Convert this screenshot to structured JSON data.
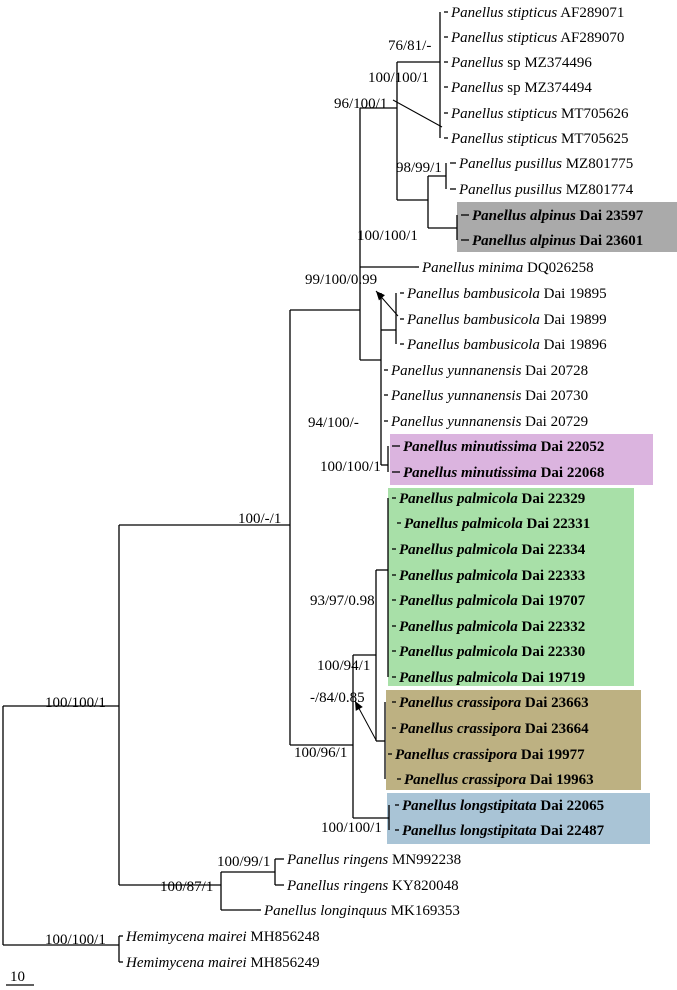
{
  "tips": [
    {
      "genus": "Panellus",
      "epithet": "stipticus",
      "voucher": "AF289071",
      "bold": false
    },
    {
      "genus": "Panellus",
      "epithet": "stipticus",
      "voucher": "AF289070",
      "bold": false
    },
    {
      "genus": "Panellus",
      "epithet": "sp",
      "voucher": "MZ374496",
      "bold": false,
      "roman_epithet": true
    },
    {
      "genus": "Panellus",
      "epithet": "sp",
      "voucher": "MZ374494",
      "bold": false,
      "roman_epithet": true
    },
    {
      "genus": "Panellus",
      "epithet": "stipticus",
      "voucher": "MT705626",
      "bold": false
    },
    {
      "genus": "Panellus",
      "epithet": "stipticus",
      "voucher": "MT705625",
      "bold": false
    },
    {
      "genus": "Panellus",
      "epithet": "pusillus",
      "voucher": "MZ801775",
      "bold": false
    },
    {
      "genus": "Panellus",
      "epithet": "pusillus",
      "voucher": "MZ801774",
      "bold": false
    },
    {
      "genus": "Panellus",
      "epithet": "alpinus",
      "voucher": "Dai 23597",
      "bold": true
    },
    {
      "genus": "Panellus",
      "epithet": "alpinus",
      "voucher": "Dai 23601",
      "bold": true
    },
    {
      "genus": "Panellus",
      "epithet": "minima",
      "voucher": "DQ026258",
      "bold": false
    },
    {
      "genus": "Panellus",
      "epithet": "bambusicola",
      "voucher": "Dai 19895",
      "bold": false
    },
    {
      "genus": "Panellus",
      "epithet": "bambusicola",
      "voucher": "Dai 19899",
      "bold": false
    },
    {
      "genus": "Panellus",
      "epithet": "bambusicola",
      "voucher": "Dai 19896",
      "bold": false
    },
    {
      "genus": "Panellus",
      "epithet": "yunnanensis",
      "voucher": "Dai 20728",
      "bold": false
    },
    {
      "genus": "Panellus",
      "epithet": "yunnanensis",
      "voucher": "Dai 20730",
      "bold": false
    },
    {
      "genus": "Panellus",
      "epithet": "yunnanensis",
      "voucher": "Dai 20729",
      "bold": false
    },
    {
      "genus": "Panellus",
      "epithet": "minutissima",
      "voucher": "Dai 22052",
      "bold": true
    },
    {
      "genus": "Panellus",
      "epithet": "minutissima",
      "voucher": "Dai 22068",
      "bold": true
    },
    {
      "genus": "Panellus",
      "epithet": "palmicola",
      "voucher": "Dai 22329",
      "bold": true
    },
    {
      "genus": "Panellus",
      "epithet": "palmicola",
      "voucher": "Dai 22331",
      "bold": true
    },
    {
      "genus": "Panellus",
      "epithet": "palmicola",
      "voucher": "Dai 22334",
      "bold": true
    },
    {
      "genus": "Panellus",
      "epithet": "palmicola",
      "voucher": "Dai 22333",
      "bold": true
    },
    {
      "genus": "Panellus",
      "epithet": "palmicola",
      "voucher": "Dai 19707",
      "bold": true
    },
    {
      "genus": "Panellus",
      "epithet": "palmicola",
      "voucher": "Dai 22332",
      "bold": true
    },
    {
      "genus": "Panellus",
      "epithet": "palmicola",
      "voucher": "Dai 22330",
      "bold": true
    },
    {
      "genus": "Panellus",
      "epithet": "palmicola",
      "voucher": "Dai 19719",
      "bold": true
    },
    {
      "genus": "Panellus",
      "epithet": "crassipora",
      "voucher": "Dai 23663",
      "bold": true
    },
    {
      "genus": "Panellus",
      "epithet": "crassipora",
      "voucher": "Dai 23664",
      "bold": true
    },
    {
      "genus": "Panellus",
      "epithet": "crassipora",
      "voucher": "Dai 19977",
      "bold": true
    },
    {
      "genus": "Panellus",
      "epithet": "crassipora",
      "voucher": "Dai 19963",
      "bold": true
    },
    {
      "genus": "Panellus",
      "epithet": "longstipitata",
      "voucher": "Dai 22065",
      "bold": true
    },
    {
      "genus": "Panellus",
      "epithet": "longstipitata",
      "voucher": "Dai 22487",
      "bold": true
    },
    {
      "genus": "Panellus",
      "epithet": "ringens",
      "voucher": "MN992238",
      "bold": false
    },
    {
      "genus": "Panellus",
      "epithet": "ringens",
      "voucher": "KY820048",
      "bold": false
    },
    {
      "genus": "Panellus",
      "epithet": "longinquus",
      "voucher": "MK169353",
      "bold": false
    },
    {
      "genus": "Hemimycena",
      "epithet": "mairei",
      "voucher": "MH856248",
      "bold": false
    },
    {
      "genus": "Hemimycena",
      "epithet": "mairei",
      "voucher": "MH856249",
      "bold": false
    }
  ],
  "support_values": [
    "76/81/-",
    "100/100/1",
    "96/100/1",
    "98/99/1",
    "100/100/1",
    "99/100/0.99",
    "94/100/-",
    "100/100/1",
    "100/-/1",
    "93/97/0.98",
    "100/94/1",
    "-/84/0.85",
    "100/96/1",
    "100/100/1",
    "100/100/1",
    "100/99/1",
    "100/87/1",
    "100/100/1"
  ],
  "highlight_colors": {
    "alpinus": "#aaaaaa",
    "minutissima": "#dbb4df",
    "palmicola": "#a8e0a8",
    "crassipora": "#bdb182",
    "longstipitata": "#a9c4d6"
  },
  "scale_bar": {
    "label": "10"
  }
}
